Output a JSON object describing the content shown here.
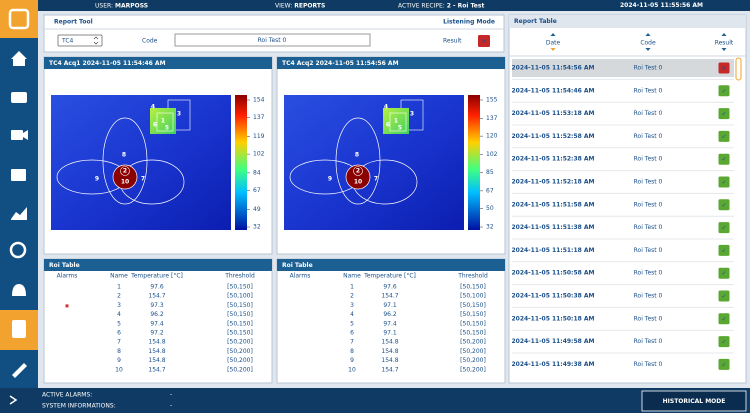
{
  "topbar": {
    "user_label": "USER:",
    "user": "MARPOSS",
    "view_label": "VIEW:",
    "view": "REPORTS",
    "recipe_label": "ACTIVE RECIPE:",
    "recipe": "2 - Roi Test",
    "datetime": "2024-11-05 11:55:56 AM"
  },
  "report_tool": {
    "title": "Report Tool",
    "mode": "Listening Mode",
    "select": "TC4",
    "code_label": "Code",
    "code": "Roi Test 0",
    "result_label": "Result",
    "result": "✕",
    "result_color": "#c62828"
  },
  "acquisitions": [
    {
      "title": "TC4 Acq1 2024-11-05 11:54:46 AM",
      "colorbar_lim": [
        32,
        154
      ],
      "colorbar_ticks": [
        154,
        137,
        119,
        102,
        84,
        67,
        49,
        32
      ],
      "roi_labels": [
        "1",
        "2",
        "3",
        "4",
        "5",
        "6",
        "7",
        "8",
        "9",
        "10"
      ]
    },
    {
      "title": "TC4 Acq2 2024-11-05 11:54:56 AM",
      "colorbar_lim": [
        32,
        155
      ],
      "colorbar_ticks": [
        155,
        137,
        120,
        102,
        85,
        67,
        50,
        32
      ],
      "roi_labels": [
        "1",
        "2",
        "3",
        "4",
        "5",
        "6",
        "7",
        "8",
        "9",
        "10"
      ]
    }
  ],
  "roi_tables": [
    {
      "title": "Roi Table",
      "columns": [
        "Alarms",
        "Name",
        "Temperature [°C]",
        "Threshold"
      ],
      "rows": [
        {
          "alarm_color": null,
          "name": 1,
          "temperature": 97.6,
          "threshold": "[50,150]"
        },
        {
          "alarm_color": "#d32f2f",
          "name": 2,
          "temperature": 154.7,
          "threshold": "[50,100]"
        },
        {
          "alarm_color": null,
          "name": 3,
          "temperature": 97.3,
          "threshold": "[50,150]"
        },
        {
          "alarm_color": null,
          "name": 4,
          "temperature": 96.2,
          "threshold": "[50,150]"
        },
        {
          "alarm_color": null,
          "name": 5,
          "temperature": 97.4,
          "threshold": "[50,150]"
        },
        {
          "alarm_color": null,
          "name": 6,
          "temperature": 97.2,
          "threshold": "[50,150]"
        },
        {
          "alarm_color": null,
          "name": 7,
          "temperature": 154.8,
          "threshold": "[50,200]"
        },
        {
          "alarm_color": null,
          "name": 8,
          "temperature": 154.8,
          "threshold": "[50,200]"
        },
        {
          "alarm_color": null,
          "name": 9,
          "temperature": 154.8,
          "threshold": "[50,200]"
        },
        {
          "alarm_color": null,
          "name": 10,
          "temperature": 154.7,
          "threshold": "[50,200]"
        }
      ]
    },
    {
      "title": "Roi Table",
      "columns": [
        "Alarms",
        "Name",
        "Temperature [°C]",
        "Threshold"
      ],
      "rows": [
        {
          "alarm_color": null,
          "name": 1,
          "temperature": 97.6,
          "threshold": "[50,150]"
        },
        {
          "alarm_color": null,
          "name": 2,
          "temperature": 154.7,
          "threshold": "[50,100]"
        },
        {
          "alarm_color": null,
          "name": 3,
          "temperature": 97.1,
          "threshold": "[50,150]"
        },
        {
          "alarm_color": null,
          "name": 4,
          "temperature": 96.2,
          "threshold": "[50,150]"
        },
        {
          "alarm_color": null,
          "name": 5,
          "temperature": 97.4,
          "threshold": "[50,150]"
        },
        {
          "alarm_color": null,
          "name": 6,
          "temperature": 97.1,
          "threshold": "[50,150]"
        },
        {
          "alarm_color": null,
          "name": 7,
          "temperature": 154.8,
          "threshold": "[50,200]"
        },
        {
          "alarm_color": null,
          "name": 8,
          "temperature": 154.8,
          "threshold": "[50,200]"
        },
        {
          "alarm_color": null,
          "name": 9,
          "temperature": 154.8,
          "threshold": "[50,200]"
        },
        {
          "alarm_color": null,
          "name": 10,
          "temperature": 154.7,
          "threshold": "[50,200]"
        }
      ]
    }
  ],
  "report_table": {
    "title": "Report Table",
    "columns": [
      "Date",
      "Code",
      "Result"
    ],
    "rows": [
      {
        "date": "2024-11-05 11:54:56 AM",
        "code": "Roi Test 0",
        "result": "✕",
        "result_color": "#c62828"
      },
      {
        "date": "2024-11-05 11:54:46 AM",
        "code": "Roi Test 0",
        "result": "✓",
        "result_color": "#5aa832"
      },
      {
        "date": "2024-11-05 11:53:18 AM",
        "code": "Roi Test 0",
        "result": "✓",
        "result_color": "#5aa832"
      },
      {
        "date": "2024-11-05 11:52:58 AM",
        "code": "Roi Test 0",
        "result": "✓",
        "result_color": "#5aa832"
      },
      {
        "date": "2024-11-05 11:52:38 AM",
        "code": "Roi Test 0",
        "result": "✓",
        "result_color": "#5aa832"
      },
      {
        "date": "2024-11-05 11:52:18 AM",
        "code": "Roi Test 0",
        "result": "✓",
        "result_color": "#5aa832"
      },
      {
        "date": "2024-11-05 11:51:58 AM",
        "code": "Roi Test 0",
        "result": "✓",
        "result_color": "#5aa832"
      },
      {
        "date": "2024-11-05 11:51:38 AM",
        "code": "Roi Test 0",
        "result": "✓",
        "result_color": "#5aa832"
      },
      {
        "date": "2024-11-05 11:51:18 AM",
        "code": "Roi Test 0",
        "result": "✓",
        "result_color": "#5aa832"
      },
      {
        "date": "2024-11-05 11:50:58 AM",
        "code": "Roi Test 0",
        "result": "✓",
        "result_color": "#5aa832"
      },
      {
        "date": "2024-11-05 11:50:38 AM",
        "code": "Roi Test 0",
        "result": "✓",
        "result_color": "#5aa832"
      },
      {
        "date": "2024-11-05 11:50:18 AM",
        "code": "Roi Test 0",
        "result": "✓",
        "result_color": "#5aa832"
      },
      {
        "date": "2024-11-05 11:49:58 AM",
        "code": "Roi Test 0",
        "result": "✓",
        "result_color": "#5aa832"
      },
      {
        "date": "2024-11-05 11:49:38 AM",
        "code": "Roi Test 0",
        "result": "✓",
        "result_color": "#5aa832"
      }
    ]
  },
  "footer": {
    "alarms_label": "ACTIVE ALARMS:",
    "alarms": "-",
    "info_label": "SYSTEM INFORMATIONS:",
    "info": "-",
    "button": "HISTORICAL MODE"
  }
}
